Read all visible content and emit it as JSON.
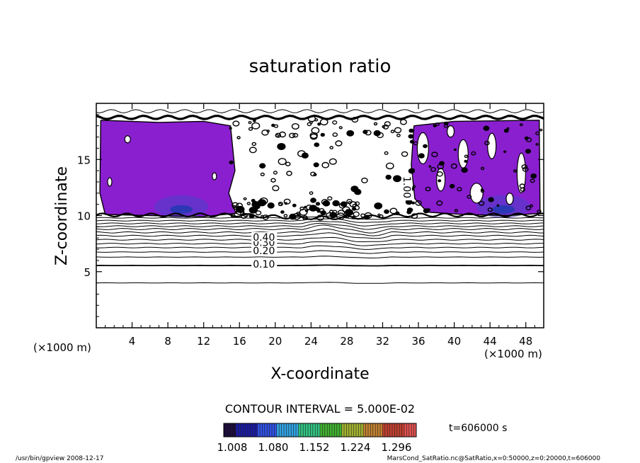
{
  "chart_data": {
    "type": "contour",
    "title": "saturation ratio",
    "xlabel": "X-coordinate",
    "ylabel": "Z-coordinate",
    "x_unit_left": "(×1000 m)",
    "x_unit_right": "(×1000 m)",
    "xlim": [
      0,
      50
    ],
    "ylim": [
      0,
      20
    ],
    "xticks": [
      4,
      8,
      12,
      16,
      20,
      24,
      28,
      32,
      36,
      40,
      44,
      48
    ],
    "yticks": [
      5,
      10,
      15
    ],
    "contour_interval_text": "CONTOUR INTERVAL = 5.000E-02",
    "contour_labels": [
      {
        "text": "0.10",
        "x": 17.5,
        "y": 5.5
      },
      {
        "text": "0.20",
        "x": 17.5,
        "y": 6.7
      },
      {
        "text": "0.30",
        "x": 17.5,
        "y": 7.4
      },
      {
        "text": "0.40",
        "x": 17.5,
        "y": 7.9
      },
      {
        "text": "1.00",
        "x": 34.5,
        "y": 13.5
      }
    ],
    "contour_levels_lower": [
      {
        "y": 4.0,
        "amp": 0.08
      },
      {
        "y": 5.55,
        "amp": 0.05
      },
      {
        "y": 6.3,
        "amp": 0.12
      },
      {
        "y": 6.75,
        "amp": 0.18
      },
      {
        "y": 7.15,
        "amp": 0.25
      },
      {
        "y": 7.5,
        "amp": 0.3
      },
      {
        "y": 7.85,
        "amp": 0.35
      },
      {
        "y": 8.2,
        "amp": 0.4
      },
      {
        "y": 8.5,
        "amp": 0.45
      },
      {
        "y": 8.8,
        "amp": 0.5
      },
      {
        "y": 9.05,
        "amp": 0.4
      },
      {
        "y": 9.3,
        "amp": 0.35
      },
      {
        "y": 9.55,
        "amp": 0.3
      },
      {
        "y": 9.8,
        "amp": 0.25
      }
    ],
    "colorbar": {
      "tick_labels": [
        "1.008",
        "1.080",
        "1.152",
        "1.224",
        "1.296"
      ],
      "colors": [
        "#1a0a3a",
        "#1a1aa0",
        "#3050e0",
        "#30a0e0",
        "#30c080",
        "#40b030",
        "#a0b030",
        "#c08030",
        "#c04030",
        "#e05050"
      ]
    },
    "time_label": "t=606000 s",
    "footer_left": "/usr/bin/gpview   2008-12-17",
    "footer_right": "MarsCond_SatRatio.nc@SatRatio,x=0:50000,z=0:20000,t=606000",
    "fill_color": "#8a1fd0"
  }
}
